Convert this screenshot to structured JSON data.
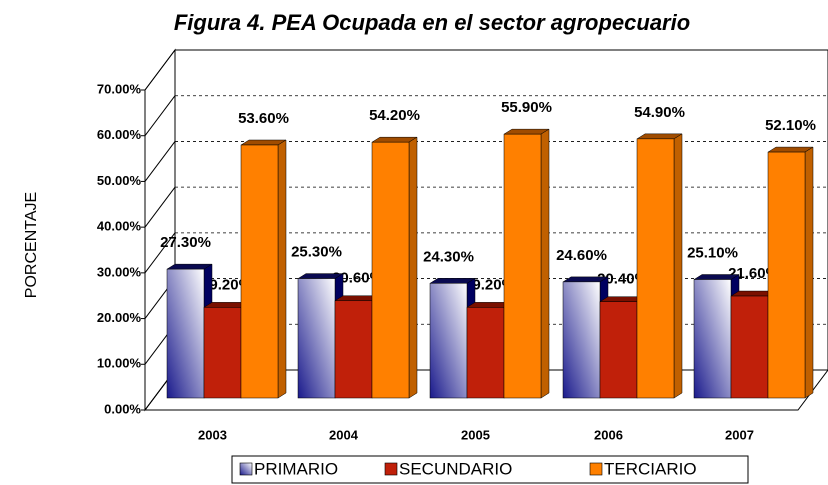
{
  "chart_data": {
    "type": "bar3d",
    "title": "Figura 4. PEA Ocupada en el sector agropecuario",
    "y_label": "PORCENTAJE",
    "categories": [
      "2003",
      "2004",
      "2005",
      "2006",
      "2007"
    ],
    "series": [
      {
        "name": "PRIMARIO",
        "color": "#1a1a8c",
        "values": [
          27.3,
          25.3,
          24.3,
          24.6,
          25.1
        ],
        "value_labels": [
          "27.30%",
          "25.30%",
          "24.30%",
          "24.60%",
          "25.10%"
        ]
      },
      {
        "name": "SECUNDARIO",
        "color": "#c0200a",
        "values": [
          19.2,
          20.6,
          19.2,
          20.4,
          21.6
        ],
        "value_labels": [
          "19.20%",
          "20.60%",
          "19.20%",
          "20.40%",
          "21.60%"
        ]
      },
      {
        "name": "TERCIARIO",
        "color": "#ff8000",
        "values": [
          53.6,
          54.2,
          55.9,
          54.9,
          52.1
        ],
        "value_labels": [
          "53.60%",
          "54.20%",
          "55.90%",
          "54.90%",
          "52.10%"
        ]
      }
    ],
    "ylim": [
      0,
      70
    ],
    "yticks": [
      {
        "value": 0,
        "label": "0.00%"
      },
      {
        "value": 10,
        "label": "10.00%"
      },
      {
        "value": 20,
        "label": "20.00%"
      },
      {
        "value": 30,
        "label": "30.00%"
      },
      {
        "value": 40,
        "label": "40.00%"
      },
      {
        "value": 50,
        "label": "50.00%"
      },
      {
        "value": 60,
        "label": "60.00%"
      },
      {
        "value": 70,
        "label": "70.00%"
      }
    ],
    "grid": true
  }
}
